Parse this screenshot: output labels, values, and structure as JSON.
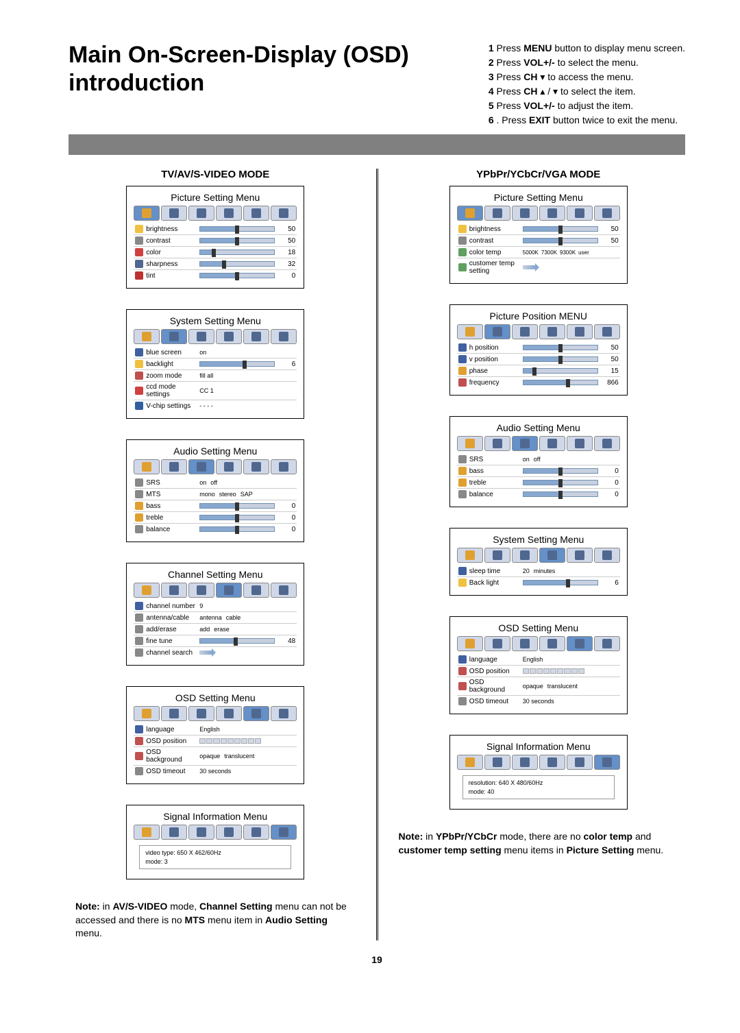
{
  "title": "Main On-Screen-Display (OSD) introduction",
  "page_number": "19",
  "steps": [
    {
      "n": "1",
      "pre": "Press ",
      "b": "MENU",
      "post": " button to display menu screen."
    },
    {
      "n": "2",
      "pre": "Press ",
      "b": "VOL+/-",
      "post": " to select the menu."
    },
    {
      "n": "3",
      "pre": "Press ",
      "b": "CH",
      "sym": "▾",
      "post": " to access the menu."
    },
    {
      "n": "4",
      "pre": "Press ",
      "b": "CH",
      "sym": "▴ / ▾",
      "post": "   to select the item."
    },
    {
      "n": "5",
      "pre": "Press ",
      "b": "VOL+/-",
      "post": " to adjust the item."
    },
    {
      "n": "6",
      "pre": ". Press ",
      "b": "EXIT",
      "post": " button twice to exit the menu."
    }
  ],
  "left": {
    "mode_title": "TV/AV/S-VIDEO MODE",
    "menus": [
      {
        "title": "Picture Setting Menu",
        "active_tab": 0,
        "rows": [
          {
            "type": "bar",
            "icon": "#f0c040",
            "label": "brightness",
            "val": 50,
            "pct": 50
          },
          {
            "type": "bar",
            "icon": "#888",
            "label": "contrast",
            "val": 50,
            "pct": 50
          },
          {
            "type": "bar",
            "icon": "#d04040",
            "label": "color",
            "val": 18,
            "pct": 18
          },
          {
            "type": "bar",
            "icon": "#506890",
            "label": "sharpness",
            "val": 32,
            "pct": 32
          },
          {
            "type": "bar",
            "icon": "#c03030",
            "label": "tint",
            "val": 0,
            "pct": 50
          }
        ]
      },
      {
        "title": "System Setting Menu",
        "active_tab": 1,
        "rows": [
          {
            "type": "opt",
            "icon": "#4060a0",
            "label": "blue screen",
            "opts": [
              "on"
            ]
          },
          {
            "type": "bar",
            "icon": "#f0c040",
            "label": "backlight",
            "val": 6,
            "pct": 60
          },
          {
            "type": "opt",
            "icon": "#c05050",
            "label": "zoom mode",
            "opts": [
              "fill all"
            ]
          },
          {
            "type": "opt",
            "icon": "#d04040",
            "label": "ccd mode settings",
            "opts": [
              "CC 1"
            ]
          },
          {
            "type": "opt",
            "icon": "#3060a0",
            "label": "V-chip settings",
            "opts": [
              "- - - -"
            ]
          }
        ]
      },
      {
        "title": "Audio Setting Menu",
        "active_tab": 2,
        "rows": [
          {
            "type": "opt",
            "icon": "#888",
            "label": "SRS",
            "opts": [
              "on",
              "off"
            ]
          },
          {
            "type": "opt",
            "icon": "#888",
            "label": "MTS",
            "opts": [
              "mono",
              "stereo",
              "SAP"
            ]
          },
          {
            "type": "bar",
            "icon": "#e0a030",
            "label": "bass",
            "val": 0,
            "pct": 50
          },
          {
            "type": "bar",
            "icon": "#e0a030",
            "label": "treble",
            "val": 0,
            "pct": 50
          },
          {
            "type": "bar",
            "icon": "#888",
            "label": "balance",
            "val": 0,
            "pct": 50
          }
        ]
      },
      {
        "title": "Channel Setting Menu",
        "active_tab": 3,
        "rows": [
          {
            "type": "opt",
            "icon": "#4060a0",
            "label": "channel number",
            "opts": [
              "9"
            ]
          },
          {
            "type": "opt",
            "icon": "#888",
            "label": "antenna/cable",
            "opts": [
              "antenna",
              "cable"
            ]
          },
          {
            "type": "opt",
            "icon": "#888",
            "label": "add/erase",
            "opts": [
              "add",
              "erase"
            ]
          },
          {
            "type": "bar",
            "icon": "#888",
            "label": "fine tune",
            "val": 48,
            "pct": 48
          },
          {
            "type": "arrow",
            "icon": "#888",
            "label": "channel search"
          }
        ]
      },
      {
        "title": "OSD Setting Menu",
        "active_tab": 4,
        "rows": [
          {
            "type": "opt",
            "icon": "#4060a0",
            "label": "language",
            "opts": [
              "English"
            ]
          },
          {
            "type": "posgrid",
            "icon": "#c05050",
            "label": "OSD position"
          },
          {
            "type": "opt",
            "icon": "#c05050",
            "label": "OSD background",
            "opts": [
              "opaque",
              "translucent"
            ]
          },
          {
            "type": "opt",
            "icon": "#888",
            "label": "OSD timeout",
            "opts": [
              "30 seconds"
            ]
          }
        ]
      },
      {
        "title": "Signal Information Menu",
        "active_tab": 5,
        "rows": [
          {
            "type": "sig",
            "lines": [
              "video type: 650 X 462/60Hz",
              "mode:      3"
            ]
          }
        ]
      }
    ],
    "note_parts": [
      {
        "b": "Note:",
        "t": " in "
      },
      {
        "b": "AV/S-VIDEO",
        "t": " mode, "
      },
      {
        "b": "Channel Setting",
        "t": " menu can not be accessed and there is no "
      },
      {
        "b": "MTS",
        "t": " menu item in "
      },
      {
        "b": "Audio Setting",
        "t": " menu."
      }
    ]
  },
  "right": {
    "mode_title": "YPbPr/YCbCr/VGA MODE",
    "menus": [
      {
        "title": "Picture Setting Menu",
        "active_tab": 0,
        "rows": [
          {
            "type": "bar",
            "icon": "#f0c040",
            "label": "brightness",
            "val": 50,
            "pct": 50
          },
          {
            "type": "bar",
            "icon": "#888",
            "label": "contrast",
            "val": 50,
            "pct": 50
          },
          {
            "type": "colortemp",
            "icon": "#60a060",
            "label": "color temp",
            "opts": [
              "5000K",
              "7300K",
              "9300K",
              "user"
            ]
          },
          {
            "type": "arrow",
            "icon": "#60a060",
            "label": "customer temp setting"
          }
        ]
      },
      {
        "title": "Picture Position MENU",
        "active_tab": 1,
        "rows": [
          {
            "type": "bar",
            "icon": "#4060a0",
            "label": "h position",
            "val": 50,
            "pct": 50
          },
          {
            "type": "bar",
            "icon": "#4060a0",
            "label": "v position",
            "val": 50,
            "pct": 50
          },
          {
            "type": "bar",
            "icon": "#e0a030",
            "label": "phase",
            "val": 15,
            "pct": 15
          },
          {
            "type": "bar",
            "icon": "#c05050",
            "label": "frequency",
            "val": 866,
            "pct": 60
          }
        ]
      },
      {
        "title": "Audio Setting Menu",
        "active_tab": 2,
        "rows": [
          {
            "type": "opt",
            "icon": "#888",
            "label": "SRS",
            "opts": [
              "on",
              "off"
            ]
          },
          {
            "type": "bar",
            "icon": "#e0a030",
            "label": "bass",
            "val": 0,
            "pct": 50
          },
          {
            "type": "bar",
            "icon": "#e0a030",
            "label": "treble",
            "val": 0,
            "pct": 50
          },
          {
            "type": "bar",
            "icon": "#888",
            "label": "balance",
            "val": 0,
            "pct": 50
          }
        ]
      },
      {
        "title": "System Setting Menu",
        "active_tab": 3,
        "rows": [
          {
            "type": "opt",
            "icon": "#4060a0",
            "label": "sleep time",
            "opts": [
              "20",
              "minutes"
            ]
          },
          {
            "type": "bar",
            "icon": "#f0c040",
            "label": "Back light",
            "val": 6,
            "pct": 60
          }
        ]
      },
      {
        "title": "OSD Setting Menu",
        "active_tab": 4,
        "rows": [
          {
            "type": "opt",
            "icon": "#4060a0",
            "label": "language",
            "opts": [
              "English"
            ]
          },
          {
            "type": "posgrid",
            "icon": "#c05050",
            "label": "OSD position"
          },
          {
            "type": "opt",
            "icon": "#c05050",
            "label": "OSD background",
            "opts": [
              "opaque",
              "translucent"
            ]
          },
          {
            "type": "opt",
            "icon": "#888",
            "label": "OSD timeout",
            "opts": [
              "30 seconds"
            ]
          }
        ]
      },
      {
        "title": "Signal Information Menu",
        "active_tab": 5,
        "rows": [
          {
            "type": "sig",
            "lines": [
              "resolution: 640 X 480/60Hz",
              "mode:      40"
            ]
          }
        ]
      }
    ],
    "note_parts": [
      {
        "b": "Note:",
        "t": " in "
      },
      {
        "b": "YPbPr/YCbCr",
        "t": " mode, there are no "
      },
      {
        "b": "color temp",
        "t": " and "
      },
      {
        "b": "customer temp setting",
        "t": " menu items in "
      },
      {
        "b": "Picture Setting",
        "t": " menu."
      }
    ]
  },
  "tab_icon_colors": [
    "#e0a030",
    "#506890",
    "#506890",
    "#506890",
    "#506890",
    "#506890"
  ]
}
